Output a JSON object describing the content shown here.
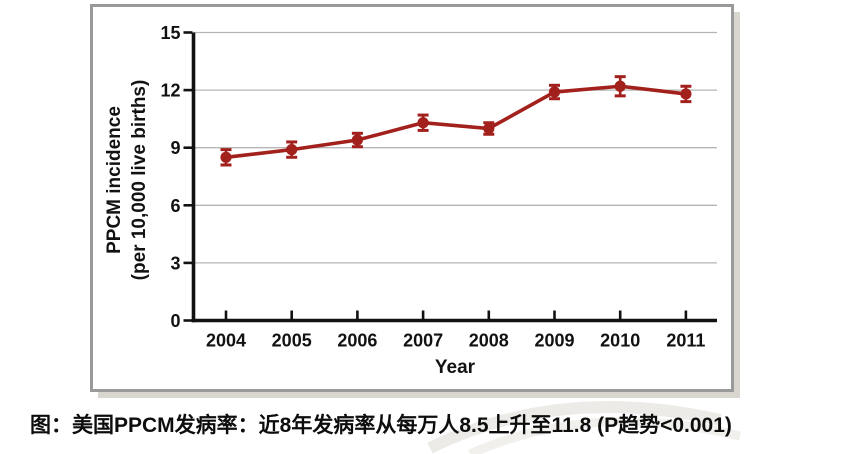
{
  "caption": {
    "text": "图：美国PPCM发病率：近8年发病率从每万人8.5上升至11.8 (P趋势<0.001)"
  },
  "chart_data": {
    "type": "line",
    "title": "",
    "xlabel": "Year",
    "ylabel_line1": "PPCM incidence",
    "ylabel_line2": "(per 10,000 live births)",
    "categories": [
      "2004",
      "2005",
      "2006",
      "2007",
      "2008",
      "2009",
      "2010",
      "2011"
    ],
    "series": [
      {
        "name": "PPCM incidence (per 10,000 live births)",
        "values": [
          8.5,
          8.9,
          9.4,
          10.3,
          10.0,
          11.9,
          12.2,
          11.8
        ],
        "errors": [
          0.4,
          0.4,
          0.35,
          0.4,
          0.3,
          0.35,
          0.5,
          0.4
        ]
      }
    ],
    "ylim": [
      0,
      15
    ],
    "yticks": [
      0,
      3,
      6,
      9,
      12,
      15
    ],
    "grid": true,
    "legend": "none",
    "line_color": "#a3211d",
    "grid_color": "#b5b5b5",
    "axis_color": "#121212",
    "marker": "circle-with-error-bars"
  }
}
